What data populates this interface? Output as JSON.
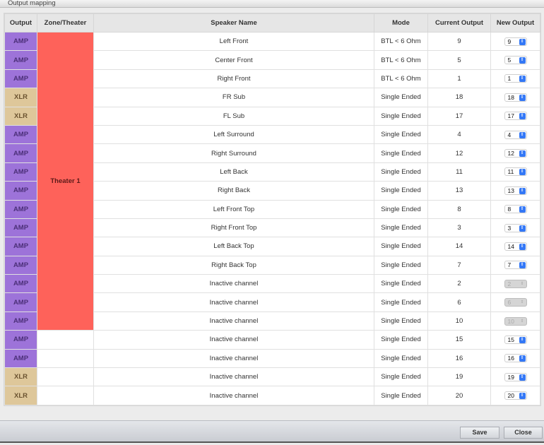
{
  "window": {
    "title": "Output mapping"
  },
  "table": {
    "headers": [
      "Output",
      "Zone/Theater",
      "Speaker Name",
      "Mode",
      "Current Output",
      "New Output"
    ],
    "zone": "Theater 1",
    "rows": [
      {
        "output": "AMP",
        "speaker": "Left Front",
        "mode": "BTL < 6 Ohm",
        "current": "9",
        "new": "9",
        "disabled": false,
        "zone": true
      },
      {
        "output": "AMP",
        "speaker": "Center Front",
        "mode": "BTL < 6 Ohm",
        "current": "5",
        "new": "5",
        "disabled": false,
        "zone": true
      },
      {
        "output": "AMP",
        "speaker": "Right Front",
        "mode": "BTL < 6 Ohm",
        "current": "1",
        "new": "1",
        "disabled": false,
        "zone": true
      },
      {
        "output": "XLR",
        "speaker": "FR Sub",
        "mode": "Single Ended",
        "current": "18",
        "new": "18",
        "disabled": false,
        "zone": true
      },
      {
        "output": "XLR",
        "speaker": "FL Sub",
        "mode": "Single Ended",
        "current": "17",
        "new": "17",
        "disabled": false,
        "zone": true
      },
      {
        "output": "AMP",
        "speaker": "Left Surround",
        "mode": "Single Ended",
        "current": "4",
        "new": "4",
        "disabled": false,
        "zone": true
      },
      {
        "output": "AMP",
        "speaker": "Right Surround",
        "mode": "Single Ended",
        "current": "12",
        "new": "12",
        "disabled": false,
        "zone": true
      },
      {
        "output": "AMP",
        "speaker": "Left Back",
        "mode": "Single Ended",
        "current": "11",
        "new": "11",
        "disabled": false,
        "zone": true
      },
      {
        "output": "AMP",
        "speaker": "Right Back",
        "mode": "Single Ended",
        "current": "13",
        "new": "13",
        "disabled": false,
        "zone": true
      },
      {
        "output": "AMP",
        "speaker": "Left Front Top",
        "mode": "Single Ended",
        "current": "8",
        "new": "8",
        "disabled": false,
        "zone": true
      },
      {
        "output": "AMP",
        "speaker": "Right Front Top",
        "mode": "Single Ended",
        "current": "3",
        "new": "3",
        "disabled": false,
        "zone": true
      },
      {
        "output": "AMP",
        "speaker": "Left Back Top",
        "mode": "Single Ended",
        "current": "14",
        "new": "14",
        "disabled": false,
        "zone": true
      },
      {
        "output": "AMP",
        "speaker": "Right Back Top",
        "mode": "Single Ended",
        "current": "7",
        "new": "7",
        "disabled": false,
        "zone": true
      },
      {
        "output": "AMP",
        "speaker": "Inactive channel",
        "mode": "Single Ended",
        "current": "2",
        "new": "2",
        "disabled": true,
        "zone": true
      },
      {
        "output": "AMP",
        "speaker": "Inactive channel",
        "mode": "Single Ended",
        "current": "6",
        "new": "6",
        "disabled": true,
        "zone": true
      },
      {
        "output": "AMP",
        "speaker": "Inactive channel",
        "mode": "Single Ended",
        "current": "10",
        "new": "10",
        "disabled": true,
        "zone": true
      },
      {
        "output": "AMP",
        "speaker": "Inactive channel",
        "mode": "Single Ended",
        "current": "15",
        "new": "15",
        "disabled": false,
        "zone": false
      },
      {
        "output": "AMP",
        "speaker": "Inactive channel",
        "mode": "Single Ended",
        "current": "16",
        "new": "16",
        "disabled": false,
        "zone": false
      },
      {
        "output": "XLR",
        "speaker": "Inactive channel",
        "mode": "Single Ended",
        "current": "19",
        "new": "19",
        "disabled": false,
        "zone": false
      },
      {
        "output": "XLR",
        "speaker": "Inactive channel",
        "mode": "Single Ended",
        "current": "20",
        "new": "20",
        "disabled": false,
        "zone": false
      }
    ]
  },
  "colors": {
    "amp": "#9d73d9",
    "xlr": "#dec79a",
    "zone": "#fe625a",
    "select_accent": "#3478f6"
  },
  "footer": {
    "save": "Save",
    "close": "Close"
  }
}
